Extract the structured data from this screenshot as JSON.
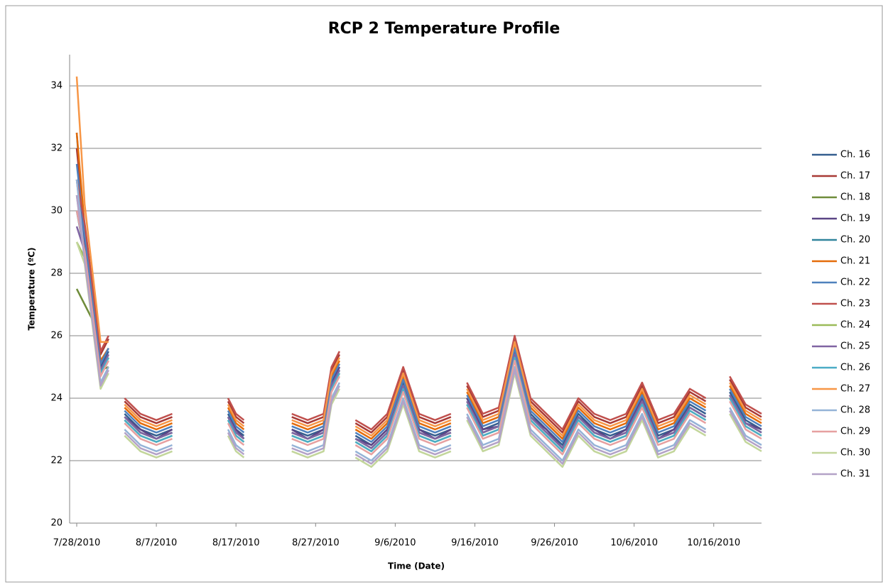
{
  "chart_data": {
    "type": "line",
    "title": "RCP 2 Temperature Profile",
    "x_label": "Time (Date)",
    "y_label": "Temperature (ºC)",
    "x": [
      "7/28/2010",
      "7/29/2010",
      "7/30/2010",
      "7/31/2010",
      "8/1/2010",
      "8/2/2010",
      "8/3/2010",
      "8/5/2010",
      "8/7/2010",
      "8/9/2010",
      "8/11/2010",
      "8/16/2010",
      "8/17/2010",
      "8/18/2010",
      "8/21/2010",
      "8/24/2010",
      "8/26/2010",
      "8/28/2010",
      "8/29/2010",
      "8/30/2010",
      "8/31/2010",
      "9/1/2010",
      "9/3/2010",
      "9/5/2010",
      "9/7/2010",
      "9/9/2010",
      "9/11/2010",
      "9/13/2010",
      "9/14/2010",
      "9/15/2010",
      "9/17/2010",
      "9/19/2010",
      "9/21/2010",
      "9/23/2010",
      "9/25/2010",
      "9/27/2010",
      "9/29/2010",
      "10/1/2010",
      "10/3/2010",
      "10/5/2010",
      "10/7/2010",
      "10/9/2010",
      "10/11/2010",
      "10/13/2010",
      "10/15/2010",
      "10/16/2010",
      "10/18/2010",
      "10/20/2010",
      "10/22/2010"
    ],
    "series": [
      {
        "name": "Ch. 16",
        "color": "#355e8f",
        "values": [
          32.5,
          29,
          27,
          25,
          25.5,
          null,
          23.5,
          23,
          22.8,
          23,
          null,
          23.5,
          23,
          22.8,
          null,
          23,
          22.8,
          23,
          24.5,
          25,
          null,
          22.8,
          22.5,
          23,
          24.5,
          23,
          22.8,
          23,
          null,
          24,
          23,
          23.2,
          25.5,
          23.5,
          23,
          22.5,
          23.5,
          23,
          22.8,
          23,
          24,
          22.8,
          23,
          23.8,
          23.5,
          null,
          24.2,
          23.3,
          23
        ]
      },
      {
        "name": "Ch. 17",
        "color": "#a83a36",
        "values": [
          32,
          29.4,
          27.4,
          25.4,
          25.9,
          null,
          23.9,
          23.4,
          23.2,
          23.4,
          null,
          23.9,
          23.4,
          23.2,
          null,
          23.4,
          23.2,
          23.4,
          24.9,
          25.4,
          null,
          23.2,
          22.9,
          23.4,
          24.9,
          23.4,
          23.2,
          23.4,
          null,
          24.4,
          23.4,
          23.6,
          25.9,
          23.9,
          23.4,
          22.9,
          23.9,
          23.4,
          23.2,
          23.4,
          24.4,
          23.2,
          23.4,
          24.2,
          23.9,
          null,
          24.6,
          23.7,
          23.4
        ]
      },
      {
        "name": "Ch. 18",
        "color": "#6f8c3a",
        "values": [
          27.5,
          27,
          26.5,
          24.9,
          25,
          null,
          23.4,
          22.9,
          22.7,
          22.9,
          null,
          23.4,
          22.9,
          22.7,
          null,
          22.9,
          22.7,
          22.9,
          24.4,
          24.9,
          null,
          22.7,
          22.4,
          22.9,
          24.4,
          22.9,
          22.7,
          22.9,
          null,
          23.9,
          22.9,
          23.1,
          25.4,
          23.4,
          22.9,
          22.4,
          23.4,
          22.9,
          22.7,
          22.9,
          23.9,
          22.7,
          22.9,
          23.7,
          23.4,
          null,
          24.1,
          23.2,
          22.9
        ]
      },
      {
        "name": "Ch. 19",
        "color": "#5b4585",
        "values": [
          31,
          28.8,
          26.8,
          24.9,
          25.4,
          null,
          23.4,
          23,
          22.7,
          23,
          null,
          23.4,
          23,
          22.7,
          null,
          23,
          22.7,
          23,
          24.4,
          25,
          null,
          22.7,
          22.5,
          23,
          24.4,
          23,
          22.7,
          23,
          null,
          24,
          23,
          23.1,
          25.4,
          23.4,
          23,
          22.4,
          23.4,
          23,
          22.7,
          23,
          24,
          22.7,
          23,
          23.7,
          23.4,
          null,
          24.1,
          23.2,
          23
        ]
      },
      {
        "name": "Ch. 20",
        "color": "#31859c",
        "values": [
          30,
          28.6,
          26.7,
          24.8,
          25.3,
          null,
          23.4,
          22.9,
          22.7,
          22.9,
          null,
          23.4,
          22.9,
          22.7,
          null,
          22.9,
          22.7,
          22.9,
          24.4,
          24.9,
          null,
          22.7,
          22.4,
          22.9,
          24.4,
          22.9,
          22.7,
          22.9,
          null,
          23.9,
          22.9,
          23.1,
          25.4,
          23.4,
          22.9,
          22.4,
          23.4,
          22.9,
          22.7,
          22.9,
          23.9,
          22.7,
          22.9,
          23.7,
          23.4,
          null,
          24.1,
          23.2,
          22.9
        ]
      },
      {
        "name": "Ch. 21",
        "color": "#e46c0a",
        "values": [
          32.5,
          29.5,
          27.3,
          25.2,
          25.6,
          null,
          23.7,
          23.2,
          23,
          23.2,
          null,
          23.7,
          23.2,
          23,
          null,
          23.2,
          23,
          23.2,
          24.7,
          25.2,
          null,
          23,
          22.7,
          23.2,
          24.7,
          23.2,
          23,
          23.2,
          null,
          24.2,
          23.2,
          23.4,
          25.7,
          23.7,
          23.2,
          22.7,
          23.7,
          23.2,
          23,
          23.2,
          24.2,
          23,
          23.2,
          24,
          23.7,
          null,
          24.4,
          23.5,
          23.2
        ]
      },
      {
        "name": "Ch. 22",
        "color": "#4f81bd",
        "values": [
          31.5,
          29.2,
          27.1,
          25.1,
          25.6,
          null,
          23.6,
          23.1,
          22.9,
          23.1,
          null,
          23.6,
          23.1,
          22.9,
          null,
          23.1,
          22.9,
          23.1,
          24.6,
          25.1,
          null,
          22.9,
          22.6,
          23.1,
          24.6,
          23.1,
          22.9,
          23.1,
          null,
          24.1,
          23.1,
          23.3,
          25.6,
          23.6,
          23.1,
          22.6,
          23.6,
          23.1,
          22.9,
          23.1,
          24.1,
          22.9,
          23.1,
          23.9,
          23.6,
          null,
          24.3,
          23.4,
          23.1
        ]
      },
      {
        "name": "Ch. 23",
        "color": "#c0504d",
        "values": [
          31,
          29.6,
          27.6,
          25.5,
          26,
          null,
          24,
          23.5,
          23.3,
          23.5,
          null,
          24,
          23.5,
          23.3,
          null,
          23.5,
          23.3,
          23.5,
          25,
          25.5,
          null,
          23.3,
          23,
          23.5,
          25,
          23.5,
          23.3,
          23.5,
          null,
          24.5,
          23.5,
          23.7,
          26,
          24,
          23.5,
          23,
          24,
          23.5,
          23.3,
          23.5,
          24.5,
          23.3,
          23.5,
          24.3,
          24,
          null,
          24.7,
          23.8,
          23.5
        ]
      },
      {
        "name": "Ch. 24",
        "color": "#9bbb59",
        "values": [
          29,
          28.5,
          26.6,
          24.8,
          25.3,
          null,
          23.3,
          22.8,
          22.6,
          22.8,
          null,
          23.3,
          22.8,
          22.6,
          null,
          22.8,
          22.6,
          22.8,
          24.3,
          24.8,
          null,
          22.6,
          22.3,
          22.8,
          24.3,
          22.8,
          22.6,
          22.8,
          null,
          23.8,
          22.8,
          23,
          25.3,
          23.3,
          22.8,
          22.3,
          23.3,
          22.8,
          22.6,
          22.8,
          23.8,
          22.6,
          22.8,
          23.6,
          23.3,
          null,
          24,
          23.1,
          22.8
        ]
      },
      {
        "name": "Ch. 25",
        "color": "#8064a2",
        "values": [
          29.5,
          28.7,
          26.8,
          24.9,
          25.4,
          null,
          23.4,
          22.9,
          22.7,
          22.9,
          null,
          23.4,
          22.9,
          22.7,
          null,
          22.9,
          22.7,
          22.9,
          24.4,
          24.9,
          null,
          22.7,
          22.4,
          22.9,
          24.4,
          22.9,
          22.7,
          22.9,
          null,
          23.9,
          22.9,
          23.1,
          25.4,
          23.4,
          22.9,
          22.4,
          23.4,
          22.9,
          22.7,
          22.9,
          23.9,
          22.7,
          22.9,
          23.7,
          23.4,
          null,
          24.1,
          23.2,
          22.9
        ]
      },
      {
        "name": "Ch. 26",
        "color": "#4bacc6",
        "values": [
          30.5,
          28.6,
          26.7,
          24.8,
          25.3,
          null,
          23.3,
          22.8,
          22.6,
          22.8,
          null,
          23.3,
          22.8,
          22.6,
          null,
          22.8,
          22.6,
          22.8,
          24.3,
          24.8,
          null,
          22.6,
          22.3,
          22.8,
          24.3,
          22.8,
          22.6,
          22.8,
          null,
          23.8,
          22.8,
          23,
          25.3,
          23.3,
          22.8,
          22.3,
          23.3,
          22.8,
          22.6,
          22.8,
          23.8,
          22.6,
          22.8,
          23.6,
          23.3,
          null,
          24,
          23.1,
          22.8
        ]
      },
      {
        "name": "Ch. 27",
        "color": "#f79646",
        "values": [
          34.3,
          30.2,
          28,
          25.8,
          25.8,
          null,
          23.8,
          23.3,
          23.1,
          23.3,
          null,
          23.8,
          23.3,
          23.1,
          null,
          23.3,
          23.1,
          23.3,
          24.8,
          25.3,
          null,
          23.1,
          22.8,
          23.3,
          24.8,
          23.3,
          23.1,
          23.3,
          null,
          24.3,
          23.3,
          23.5,
          25.8,
          23.8,
          23.3,
          22.8,
          23.8,
          23.3,
          23.1,
          23.3,
          24.3,
          23.1,
          23.3,
          24.1,
          23.8,
          null,
          24.5,
          23.6,
          23.3
        ]
      },
      {
        "name": "Ch. 28",
        "color": "#95b3d7",
        "values": [
          31,
          28.5,
          26.5,
          24.5,
          25,
          null,
          23,
          22.5,
          22.3,
          22.5,
          null,
          23,
          22.5,
          22.3,
          null,
          22.5,
          22.3,
          22.5,
          24,
          24.5,
          null,
          22.3,
          22,
          22.5,
          24,
          22.5,
          22.3,
          22.5,
          null,
          23.5,
          22.5,
          22.7,
          25,
          23,
          22.5,
          22,
          23,
          22.5,
          22.3,
          22.5,
          23.5,
          22.3,
          22.5,
          23.3,
          23,
          null,
          23.7,
          22.8,
          22.5
        ]
      },
      {
        "name": "Ch. 29",
        "color": "#e6a0a0",
        "values": [
          30,
          28.7,
          26.7,
          24.7,
          25.2,
          null,
          23.2,
          22.7,
          22.5,
          22.7,
          null,
          23.2,
          22.7,
          22.5,
          null,
          22.7,
          22.5,
          22.7,
          24.2,
          24.7,
          null,
          22.5,
          22.2,
          22.7,
          24.2,
          22.7,
          22.5,
          22.7,
          null,
          23.7,
          22.7,
          22.9,
          25.2,
          23.2,
          22.7,
          22.2,
          23.2,
          22.7,
          22.5,
          22.7,
          23.7,
          22.5,
          22.7,
          23.5,
          23.2,
          null,
          23.9,
          23,
          22.7
        ]
      },
      {
        "name": "Ch. 30",
        "color": "#c3d69b",
        "values": [
          29,
          28.3,
          26.3,
          24.3,
          24.8,
          null,
          22.8,
          22.3,
          22.1,
          22.3,
          null,
          22.8,
          22.3,
          22.1,
          null,
          22.3,
          22.1,
          22.3,
          23.8,
          24.3,
          null,
          22.1,
          21.8,
          22.3,
          23.8,
          22.3,
          22.1,
          22.3,
          null,
          23.3,
          22.3,
          22.5,
          24.8,
          22.8,
          22.3,
          21.8,
          22.8,
          22.3,
          22.1,
          22.3,
          23.3,
          22.1,
          22.3,
          23.1,
          22.8,
          null,
          23.5,
          22.6,
          22.3
        ]
      },
      {
        "name": "Ch. 31",
        "color": "#b3a2c7",
        "values": [
          30.5,
          28.4,
          26.4,
          24.4,
          24.9,
          null,
          22.9,
          22.4,
          22.2,
          22.4,
          null,
          22.9,
          22.4,
          22.2,
          null,
          22.4,
          22.2,
          22.4,
          23.9,
          24.4,
          null,
          22.2,
          21.9,
          22.4,
          23.9,
          22.4,
          22.2,
          22.4,
          null,
          23.4,
          22.4,
          22.6,
          24.9,
          22.9,
          22.4,
          21.9,
          22.9,
          22.4,
          22.2,
          22.4,
          23.4,
          22.2,
          22.4,
          23.2,
          22.9,
          null,
          23.6,
          22.7,
          22.4
        ]
      }
    ],
    "xlim": [
      "7/28/2010",
      "10/22/2010"
    ],
    "xticks": [
      "7/28/2010",
      "8/7/2010",
      "8/17/2010",
      "8/27/2010",
      "9/6/2010",
      "9/16/2010",
      "9/26/2010",
      "10/6/2010",
      "10/16/2010"
    ],
    "ylim": [
      20,
      35
    ],
    "yticks": [
      20,
      22,
      24,
      26,
      28,
      30,
      32,
      34
    ],
    "grid": true,
    "legend": "right"
  }
}
